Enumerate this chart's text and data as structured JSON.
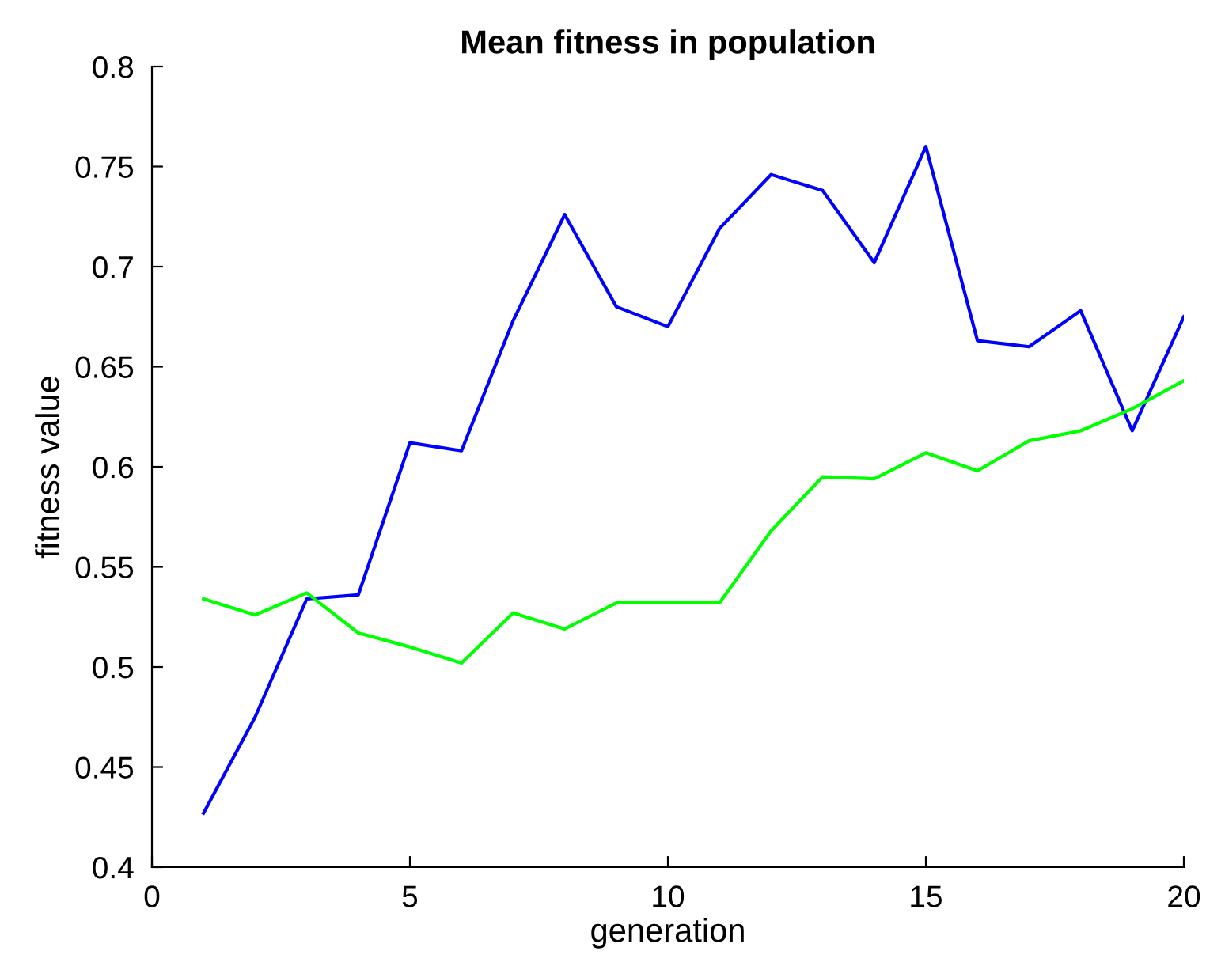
{
  "chart_data": {
    "type": "line",
    "title": "Mean fitness in population",
    "xlabel": "generation",
    "ylabel": "fitness value",
    "x": [
      1,
      2,
      3,
      4,
      5,
      6,
      7,
      8,
      9,
      10,
      11,
      12,
      13,
      14,
      15,
      16,
      17,
      18,
      19,
      20
    ],
    "series": [
      {
        "color": "#0000ff",
        "values": [
          0.427,
          0.475,
          0.534,
          0.536,
          0.612,
          0.608,
          0.673,
          0.726,
          0.68,
          0.67,
          0.719,
          0.746,
          0.738,
          0.702,
          0.76,
          0.663,
          0.66,
          0.678,
          0.618,
          0.675
        ]
      },
      {
        "color": "#00ff00",
        "values": [
          0.534,
          0.526,
          0.537,
          0.517,
          0.51,
          0.502,
          0.527,
          0.519,
          0.532,
          0.532,
          0.532,
          0.568,
          0.595,
          0.594,
          0.607,
          0.598,
          0.613,
          0.618,
          0.629,
          0.643
        ]
      }
    ],
    "xlim": [
      0,
      20
    ],
    "xticks": [
      0,
      5,
      10,
      15,
      20
    ],
    "ylim": [
      0.4,
      0.8
    ],
    "yticks": [
      0.4,
      0.45,
      0.5,
      0.55,
      0.6,
      0.65,
      0.7,
      0.75,
      0.8
    ],
    "grid": false
  }
}
